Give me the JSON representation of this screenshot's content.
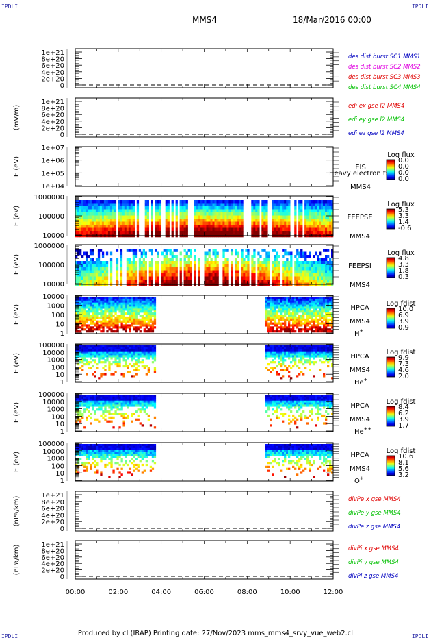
{
  "corners": {
    "tl": "IPDLI",
    "tr": "IPDLI",
    "bl": "IPDLI",
    "br": "IPDLI"
  },
  "header": {
    "spacecraft": "MMS4",
    "date": "18/Mar/2016 00:00"
  },
  "footer": {
    "text": "Produced by cl (IRAP)   Printing date: 27/Nov/2023   mms_mms4_srvy_vue_web2.cl"
  },
  "colors": {
    "red": "#e00000",
    "magenta": "#e000e0",
    "green": "#00c000",
    "blue": "#0000c0"
  },
  "chart_data": [
    {
      "type": "line",
      "ylabel": "",
      "y_ticks": [
        "1e+21",
        "8e+20",
        "6e+20",
        "4e+20",
        "2e+20",
        "0"
      ],
      "series": [
        {
          "name": "des dist burst SC1 MMS1",
          "color": "#0000c0"
        },
        {
          "name": "des dist burst SC2 MMS2",
          "color": "#e000e0"
        },
        {
          "name": "des dist burst SC3 MMS3",
          "color": "#e00000"
        },
        {
          "name": "des dist burst SC4 MMS4",
          "color": "#00c000"
        }
      ]
    },
    {
      "type": "line",
      "ylabel": "(mV/m)",
      "y_ticks": [
        "1e+21",
        "8e+20",
        "6e+20",
        "4e+20",
        "2e+20",
        "0"
      ],
      "series": [
        {
          "name": "edi ex gse l2 MMS4",
          "color": "#e00000"
        },
        {
          "name": "edi ey gse l2 MMS4",
          "color": "#00c000"
        },
        {
          "name": "edi ez gse l2 MMS4",
          "color": "#0000c0"
        }
      ]
    },
    {
      "type": "heatmap",
      "ylabel": "E (eV)",
      "y_ticks": [
        "1e+07",
        "1e+06",
        "1e+05",
        "1e+04"
      ],
      "instrument": "EIS",
      "spacecraft": "MMS4",
      "overlay_text": "Heavy electron ts",
      "colorbar_title": "Log flux",
      "colorbar_ticks": [
        "0.0",
        "0.0",
        "0.0",
        "0.0"
      ],
      "coverage": "none"
    },
    {
      "type": "heatmap",
      "ylabel": "E (eV)",
      "y_ticks": [
        "1000000",
        "100000",
        "10000"
      ],
      "instrument": "FEEPSE",
      "spacecraft": "MMS4",
      "colorbar_title": "Log flux",
      "colorbar_ticks": [
        "5.3",
        "3.3",
        "1.4",
        "-0.6"
      ],
      "coverage": "full",
      "x_range_hours": [
        0,
        12
      ]
    },
    {
      "type": "heatmap",
      "ylabel": "E (eV)",
      "y_ticks": [
        "1000000",
        "100000",
        "10000"
      ],
      "instrument": "FEEPSI",
      "spacecraft": "MMS4",
      "colorbar_title": "Log flux",
      "colorbar_ticks": [
        "4.8",
        "3.3",
        "1.8",
        "0.3"
      ],
      "coverage": "full",
      "x_range_hours": [
        0,
        12
      ]
    },
    {
      "type": "heatmap",
      "ylabel": "E (eV)",
      "y_ticks": [
        "10000",
        "1000",
        "100",
        "10",
        "1"
      ],
      "instrument": "HPCA",
      "spacecraft": "MMS4",
      "species": "H",
      "species_sup": "+",
      "colorbar_title": "Log fdist",
      "colorbar_ticks": [
        "10.0",
        "6.9",
        "3.9",
        "0.9"
      ],
      "data_intervals_hours": [
        [
          0,
          3.75
        ],
        [
          8.85,
          12
        ]
      ]
    },
    {
      "type": "heatmap",
      "ylabel": "E (eV)",
      "y_ticks": [
        "100000",
        "10000",
        "1000",
        "100",
        "10",
        "1"
      ],
      "instrument": "HPCA",
      "spacecraft": "MMS4",
      "species": "He",
      "species_sup": "+",
      "colorbar_title": "Log fdist",
      "colorbar_ticks": [
        "9.9",
        "7.3",
        "4.6",
        "2.0"
      ],
      "data_intervals_hours": [
        [
          0,
          3.75
        ],
        [
          8.85,
          12
        ]
      ]
    },
    {
      "type": "heatmap",
      "ylabel": "E (eV)",
      "y_ticks": [
        "100000",
        "10000",
        "1000",
        "100",
        "10",
        "1"
      ],
      "instrument": "HPCA",
      "spacecraft": "MMS4",
      "species": "He",
      "species_sup": "++",
      "colorbar_title": "Log fdist",
      "colorbar_ticks": [
        "8.4",
        "6.2",
        "3.9",
        "1.7"
      ],
      "data_intervals_hours": [
        [
          0,
          3.75
        ],
        [
          8.85,
          12
        ]
      ]
    },
    {
      "type": "heatmap",
      "ylabel": "E (eV)",
      "y_ticks": [
        "100000",
        "10000",
        "1000",
        "100",
        "10",
        "1"
      ],
      "instrument": "HPCA",
      "spacecraft": "MMS4",
      "species": "O",
      "species_sup": "+",
      "colorbar_title": "Log fdist",
      "colorbar_ticks": [
        "10.6",
        "8.1",
        "5.6",
        "3.2"
      ],
      "data_intervals_hours": [
        [
          0,
          3.75
        ],
        [
          8.85,
          12
        ]
      ]
    },
    {
      "type": "line",
      "ylabel": "(nPa/km)",
      "y_ticks": [
        "1e+21",
        "8e+20",
        "6e+20",
        "4e+20",
        "2e+20",
        "0"
      ],
      "series": [
        {
          "name": "divPe x gse MMS4",
          "color": "#e00000"
        },
        {
          "name": "divPe y gse MMS4",
          "color": "#00c000"
        },
        {
          "name": "divPe z gse MMS4",
          "color": "#0000c0"
        }
      ]
    },
    {
      "type": "line",
      "ylabel": "(nPa/km)",
      "y_ticks": [
        "1e+21",
        "8e+20",
        "6e+20",
        "4e+20",
        "2e+20",
        "0"
      ],
      "series": [
        {
          "name": "divPi x gse MMS4",
          "color": "#e00000"
        },
        {
          "name": "divPi y gse MMS4",
          "color": "#00c000"
        },
        {
          "name": "divPi z gse MMS4",
          "color": "#0000c0"
        }
      ]
    }
  ],
  "x_axis": {
    "range_hours": [
      0,
      12
    ],
    "tick_labels": [
      "00:00",
      "02:00",
      "04:00",
      "06:00",
      "08:00",
      "10:00",
      "12:00"
    ]
  }
}
